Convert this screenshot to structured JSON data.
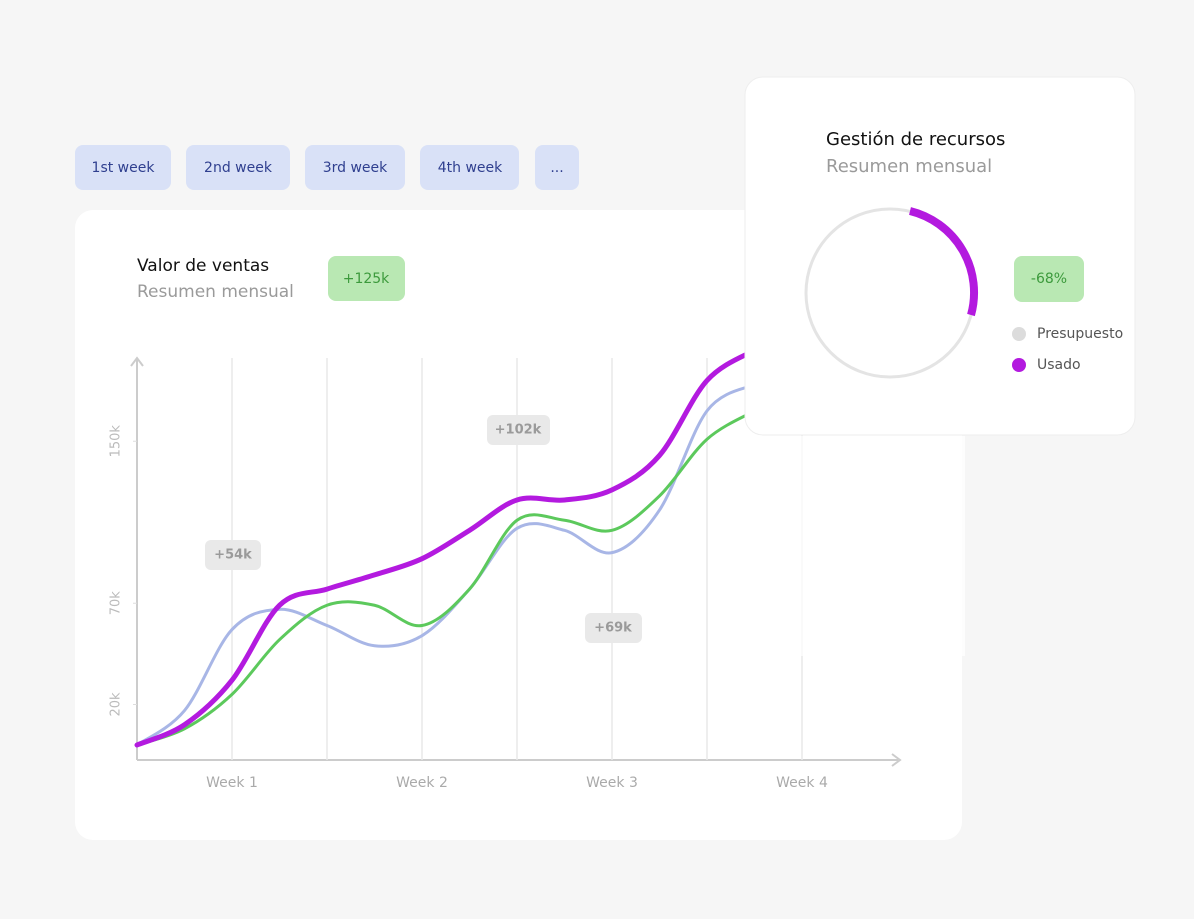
{
  "tabs": [
    "1st week",
    "2nd week",
    "3rd week",
    "4th week",
    "..."
  ],
  "chart_data": {
    "type": "line",
    "title": "Valor de ventas",
    "subtitle": "Resumen mensual",
    "badge": "+125k",
    "annotations": [
      "+54k",
      "+102k",
      "+69k"
    ],
    "x": [
      0,
      0.25,
      0.5,
      0.75,
      1,
      1.25,
      1.5,
      1.75,
      2,
      2.25,
      2.5,
      2.75,
      3,
      3.25
    ],
    "xlim": [
      0,
      4
    ],
    "xticks": [
      {
        "value": 0.5,
        "label": "Week 1"
      },
      {
        "value": 1.5,
        "label": "Week 2"
      },
      {
        "value": 2.5,
        "label": "Week 3"
      },
      {
        "value": 3.5,
        "label": "Week 4"
      }
    ],
    "ylim": [
      0,
      200
    ],
    "yticks": [
      {
        "value": 20,
        "label": "20k"
      },
      {
        "value": 70,
        "label": "70k"
      },
      {
        "value": 150,
        "label": "150k"
      }
    ],
    "grid": true,
    "series": [
      {
        "color": "#a8b6e6",
        "values": [
          0,
          17,
          57,
          67,
          59,
          49,
          54,
          77,
          107,
          106,
          95,
          116,
          165,
          178
        ]
      },
      {
        "color": "#5cc95c",
        "values": [
          0,
          8,
          25,
          52,
          69,
          69,
          59,
          77,
          111,
          111,
          106,
          123,
          151,
          165
        ]
      },
      {
        "color": "#b31adf",
        "values": [
          0,
          10,
          32,
          69,
          77,
          84,
          92,
          106,
          121,
          121,
          126,
          143,
          180,
          195
        ]
      }
    ]
  },
  "resources": {
    "title": "Gestión de recursos",
    "subtitle": "Resumen mensual",
    "badge": "-68%",
    "legend": [
      {
        "label": "Presupuesto",
        "color": "#dcdcdc"
      },
      {
        "label": "Usado",
        "color": "#b31adf"
      }
    ]
  }
}
